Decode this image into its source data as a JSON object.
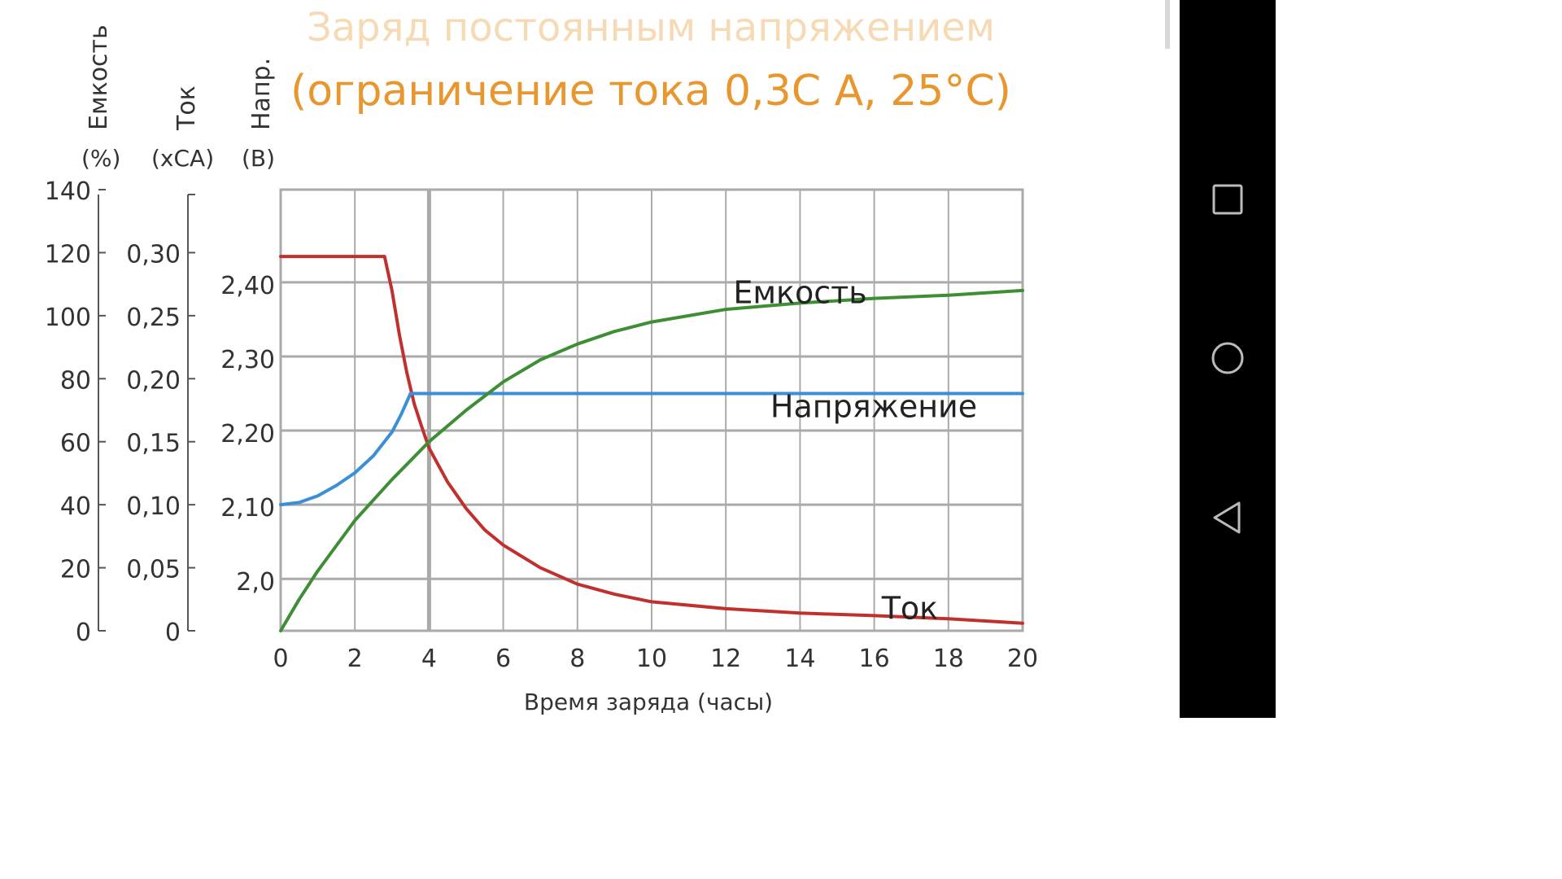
{
  "chart_data": {
    "type": "line",
    "title": "Заряд постоянным напряжением",
    "subtitle": "(ограничение тока 0,3С А, 25°С)",
    "xlabel": "Время заряда (часы)",
    "xlim": [
      0,
      20
    ],
    "x_ticks": [
      0,
      2,
      4,
      6,
      8,
      10,
      12,
      14,
      16,
      18,
      20
    ],
    "x_tick_labels": [
      "0",
      "2",
      "4",
      "6",
      "8",
      "10",
      "12",
      "14",
      "16",
      "18",
      "20"
    ],
    "grid": true,
    "axes": {
      "capacity": {
        "label": "Емкость",
        "unit": "(%)",
        "ylim": [
          0,
          140
        ],
        "ticks": [
          0,
          20,
          40,
          60,
          80,
          100,
          120,
          140
        ],
        "tick_labels": [
          "0",
          "20",
          "40",
          "60",
          "80",
          "100",
          "120",
          "140"
        ]
      },
      "current": {
        "label": "Ток",
        "unit": "(хСА)",
        "ylim": [
          0,
          0.35
        ],
        "ticks": [
          0,
          0.05,
          0.1,
          0.15,
          0.2,
          0.25,
          0.3
        ],
        "tick_labels": [
          "0",
          "0,05",
          "0,10",
          "0,15",
          "0,20",
          "0,25",
          "0,30"
        ]
      },
      "voltage": {
        "label": "Напр.",
        "unit": "(В)",
        "ylim": [
          1.93,
          2.525
        ],
        "ticks": [
          2.0,
          2.1,
          2.2,
          2.3,
          2.4
        ],
        "tick_labels": [
          "2,0",
          "2,10",
          "2,20",
          "2,30",
          "2,40"
        ]
      }
    },
    "series": [
      {
        "name": "Ток",
        "axis": "current",
        "color": "#c0302f",
        "points": [
          [
            0,
            0.297
          ],
          [
            2.8,
            0.297
          ],
          [
            3,
            0.27
          ],
          [
            3.2,
            0.235
          ],
          [
            3.4,
            0.205
          ],
          [
            3.6,
            0.18
          ],
          [
            3.8,
            0.162
          ],
          [
            4,
            0.145
          ],
          [
            4.5,
            0.118
          ],
          [
            5,
            0.097
          ],
          [
            5.5,
            0.08
          ],
          [
            6,
            0.068
          ],
          [
            7,
            0.05
          ],
          [
            8,
            0.037
          ],
          [
            9,
            0.029
          ],
          [
            10,
            0.023
          ],
          [
            12,
            0.0175
          ],
          [
            14,
            0.014
          ],
          [
            16,
            0.012
          ],
          [
            18,
            0.0095
          ],
          [
            20,
            0.006
          ]
        ]
      },
      {
        "name": "Напряжение",
        "axis": "voltage",
        "color": "#3a8fd6",
        "points": [
          [
            0,
            2.1
          ],
          [
            0.5,
            2.103
          ],
          [
            1,
            2.112
          ],
          [
            1.5,
            2.126
          ],
          [
            2,
            2.143
          ],
          [
            2.5,
            2.166
          ],
          [
            3,
            2.198
          ],
          [
            3.25,
            2.222
          ],
          [
            3.5,
            2.25
          ],
          [
            20,
            2.25
          ]
        ]
      },
      {
        "name": "Емкость",
        "axis": "capacity",
        "color": "#3e8e35",
        "points": [
          [
            0,
            0
          ],
          [
            0.5,
            10
          ],
          [
            1,
            19
          ],
          [
            1.5,
            27
          ],
          [
            2,
            35
          ],
          [
            3,
            48
          ],
          [
            4,
            60
          ],
          [
            5,
            70
          ],
          [
            6,
            79
          ],
          [
            7,
            86
          ],
          [
            8,
            91
          ],
          [
            9,
            95
          ],
          [
            10,
            98
          ],
          [
            12,
            102
          ],
          [
            14,
            104
          ],
          [
            16,
            105.5
          ],
          [
            18,
            106.5
          ],
          [
            20,
            108
          ]
        ]
      }
    ],
    "annotations": [
      {
        "text": "Емкость",
        "x": 12.2,
        "axis": "capacity",
        "y": 104
      },
      {
        "text": "Напряжение",
        "x": 13.2,
        "axis": "voltage",
        "y": 2.218
      },
      {
        "text": "Ток",
        "x": 16.2,
        "axis": "current",
        "y": 0.0095
      }
    ]
  },
  "nav": {
    "square_label": "□",
    "circle_label": "○",
    "back_label": "◁"
  },
  "colors": {
    "title": "#e8962e",
    "grid": "#aaaaaa",
    "nav_bg": "#000000"
  }
}
